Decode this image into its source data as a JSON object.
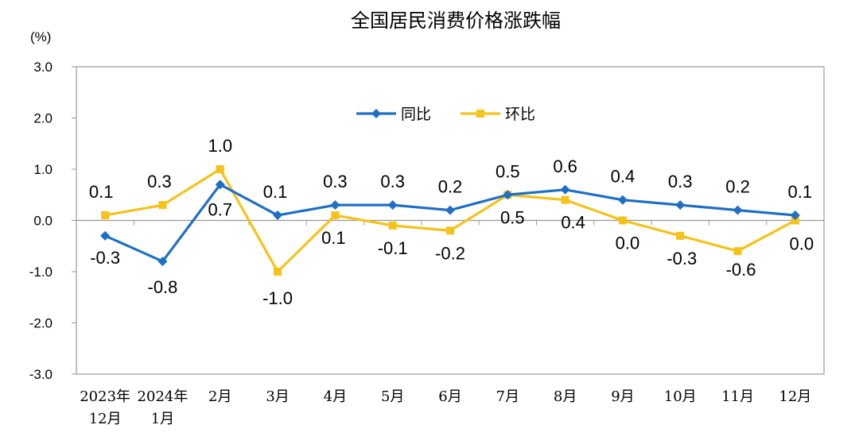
{
  "chart_data": {
    "type": "line",
    "title": "全国居民消费价格涨跌幅",
    "unit": "(%)",
    "ylim": [
      -3.0,
      3.0
    ],
    "yticks": [
      "3.0",
      "2.0",
      "1.0",
      "0.0",
      "-1.0",
      "-2.0",
      "-3.0"
    ],
    "categories": [
      [
        "2023年",
        "12月"
      ],
      [
        "2024年",
        "1月"
      ],
      [
        "2月"
      ],
      [
        "3月"
      ],
      [
        "4月"
      ],
      [
        "5月"
      ],
      [
        "6月"
      ],
      [
        "7月"
      ],
      [
        "8月"
      ],
      [
        "9月"
      ],
      [
        "10月"
      ],
      [
        "11月"
      ],
      [
        "12月"
      ]
    ],
    "series": [
      {
        "name": "同比",
        "color": "#1F6FC5",
        "marker": "diamond",
        "values": [
          -0.3,
          -0.8,
          0.7,
          0.1,
          0.3,
          0.3,
          0.2,
          0.5,
          0.6,
          0.4,
          0.3,
          0.2,
          0.1
        ],
        "labels": [
          "-0.3",
          "-0.8",
          "0.7",
          "0.1",
          "0.3",
          "0.3",
          "0.2",
          "0.5",
          "0.6",
          "0.4",
          "0.3",
          "0.2",
          "0.1"
        ]
      },
      {
        "name": "环比",
        "color": "#F5C21B",
        "marker": "square",
        "values": [
          0.1,
          0.3,
          1.0,
          -1.0,
          0.1,
          -0.1,
          -0.2,
          0.5,
          0.4,
          0.0,
          -0.3,
          -0.6,
          0.0
        ],
        "labels": [
          "0.1",
          "0.3",
          "1.0",
          "-1.0",
          "0.1",
          "-0.1",
          "-0.2",
          "0.5",
          "0.4",
          "0.0",
          "-0.3",
          "-0.6",
          "0.0"
        ]
      }
    ],
    "legend": "top-center",
    "grid": false
  }
}
